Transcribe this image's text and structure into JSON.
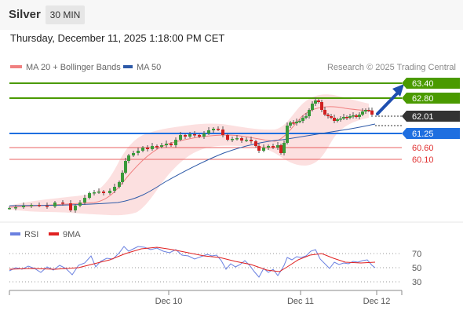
{
  "header": {
    "symbol": "Silver",
    "timeframe": "30 MIN",
    "datetime": "Thursday, December 11, 2025 1:18:00 PM CET"
  },
  "legend": {
    "ma20_label": "MA 20 + Bollinger Bands",
    "ma20_color": "#f08080",
    "ma50_label": "MA 50",
    "ma50_color": "#2e5aa8",
    "copyright": "Research © 2025 Trading Central"
  },
  "levels": [
    {
      "value": "63.40",
      "kind": "resistance",
      "color": "#4a9a00"
    },
    {
      "value": "62.80",
      "kind": "resistance",
      "color": "#4a9a00"
    },
    {
      "value": "62.01",
      "kind": "last",
      "color": "#333333"
    },
    {
      "value": "61.25",
      "kind": "pivot",
      "color": "#1f6fe0"
    },
    {
      "value": "60.60",
      "kind": "support",
      "color": "#e03030"
    },
    {
      "value": "60.10",
      "kind": "support",
      "color": "#e03030"
    }
  ],
  "rsi_panel": {
    "rsi_label": "RSI",
    "rsi_color": "#6a80e0",
    "ma_label": "9MA",
    "ma_color": "#e02020",
    "ticks": [
      "70",
      "50",
      "30"
    ]
  },
  "x_axis": {
    "labels": [
      "Dec 10",
      "Dec 11",
      "Dec 12"
    ]
  }
}
